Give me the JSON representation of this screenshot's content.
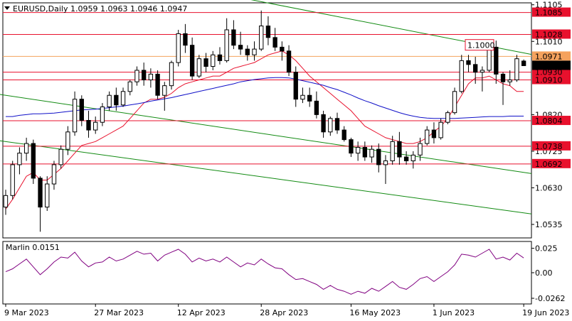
{
  "chart_data": {
    "type": "candlestick",
    "symbol_header": "EURUSD,Daily  1.0959 1.0963 1.0946 1.0947",
    "price_axis": {
      "ylim": [
        1.05,
        1.111
      ],
      "tick_labels": [
        {
          "value": 1.1105,
          "text": "1.1105"
        },
        {
          "value": 1.101,
          "text": "1.1010"
        },
        {
          "value": 1.082,
          "text": "1.0820"
        },
        {
          "value": 1.0725,
          "text": "1.0725"
        },
        {
          "value": 1.063,
          "text": "1.0630"
        },
        {
          "value": 1.0535,
          "text": "1.0535"
        }
      ]
    },
    "horizontal_levels": [
      {
        "value": 1.1085,
        "text": "1.1085",
        "color": "#e8112d"
      },
      {
        "value": 1.1028,
        "text": "1.1028",
        "color": "#e8112d"
      },
      {
        "value": 1.0971,
        "text": "1.0971",
        "color": "#f5a25d"
      },
      {
        "value": 1.093,
        "text": "1.0930",
        "color": "#e8112d"
      },
      {
        "value": 1.091,
        "text": "1.0910",
        "color": "#e8112d"
      },
      {
        "value": 1.0804,
        "text": "1.0804",
        "color": "#e8112d"
      },
      {
        "value": 1.0738,
        "text": "1.0738",
        "color": "#e8112d"
      },
      {
        "value": 1.0692,
        "text": "1.0692",
        "color": "#e8112d"
      }
    ],
    "current_price": {
      "value": 1.0947,
      "text": "1.0947"
    },
    "annotation": {
      "text": "1.1000",
      "value": 1.1
    },
    "date_labels": [
      "9 Mar 2023",
      "27 Mar 2023",
      "12 Apr 2023",
      "28 Apr 2023",
      "16 May 2023",
      "1 Jun 2023",
      "19 Jun 2023"
    ],
    "date_label_bar_index": [
      0,
      13,
      25,
      37,
      50,
      62,
      75
    ],
    "candles": [
      [
        1.058,
        1.0625,
        1.056,
        1.061
      ],
      [
        1.061,
        1.07,
        1.06,
        1.069
      ],
      [
        1.069,
        1.0735,
        1.0665,
        1.072
      ],
      [
        1.072,
        1.076,
        1.07,
        1.0745
      ],
      [
        1.0745,
        1.0755,
        1.064,
        1.0655
      ],
      [
        1.0655,
        1.066,
        1.0516,
        1.058
      ],
      [
        1.058,
        1.066,
        1.057,
        1.064
      ],
      [
        1.064,
        1.07,
        1.0625,
        1.069
      ],
      [
        1.069,
        1.074,
        1.068,
        1.073
      ],
      [
        1.073,
        1.079,
        1.0715,
        1.0775
      ],
      [
        1.0775,
        1.088,
        1.0765,
        1.086
      ],
      [
        1.086,
        1.087,
        1.079,
        1.0805
      ],
      [
        1.0805,
        1.083,
        1.076,
        1.078
      ],
      [
        1.078,
        1.0815,
        1.077,
        1.08
      ],
      [
        1.08,
        1.085,
        1.079,
        1.084
      ],
      [
        1.084,
        1.088,
        1.083,
        1.087
      ],
      [
        1.087,
        1.089,
        1.083,
        1.0845
      ],
      [
        1.0845,
        1.089,
        1.084,
        1.088
      ],
      [
        1.088,
        1.091,
        1.087,
        1.0905
      ],
      [
        1.0905,
        1.0945,
        1.0895,
        1.0935
      ],
      [
        1.0935,
        1.0955,
        1.0895,
        1.091
      ],
      [
        1.091,
        1.094,
        1.089,
        1.0925
      ],
      [
        1.0925,
        1.0935,
        1.086,
        1.087
      ],
      [
        1.087,
        1.0905,
        1.083,
        1.0895
      ],
      [
        1.0895,
        1.096,
        1.0885,
        1.0955
      ],
      [
        1.0955,
        1.104,
        1.0945,
        1.103
      ],
      [
        1.103,
        1.1055,
        1.098,
        1.1
      ],
      [
        1.1,
        1.102,
        1.091,
        1.092
      ],
      [
        1.092,
        1.0975,
        1.0915,
        1.0965
      ],
      [
        1.0965,
        1.098,
        1.093,
        1.0945
      ],
      [
        1.0945,
        1.0985,
        1.0935,
        1.0975
      ],
      [
        1.0975,
        1.0995,
        1.095,
        1.096
      ],
      [
        1.096,
        1.107,
        1.0955,
        1.104
      ],
      [
        1.104,
        1.1065,
        1.099,
        1.1
      ],
      [
        1.1,
        1.1035,
        1.0975,
        1.099
      ],
      [
        1.099,
        1.1,
        1.096,
        1.0975
      ],
      [
        1.0975,
        1.101,
        1.096,
        1.099
      ],
      [
        1.099,
        1.109,
        1.0985,
        1.105
      ],
      [
        1.105,
        1.1075,
        1.1,
        1.102
      ],
      [
        1.102,
        1.1045,
        1.0985,
        1.0995
      ],
      [
        1.0995,
        1.101,
        1.096,
        1.0985
      ],
      [
        1.0985,
        1.1,
        1.092,
        1.093
      ],
      [
        1.093,
        1.0945,
        1.084,
        1.086
      ],
      [
        1.086,
        1.089,
        1.085,
        1.087
      ],
      [
        1.087,
        1.089,
        1.084,
        1.0855
      ],
      [
        1.0855,
        1.088,
        1.081,
        1.082
      ],
      [
        1.082,
        1.083,
        1.076,
        1.0775
      ],
      [
        1.0775,
        1.0815,
        1.0765,
        1.081
      ],
      [
        1.081,
        1.0825,
        1.077,
        1.078
      ],
      [
        1.078,
        1.079,
        1.075,
        1.0755
      ],
      [
        1.0755,
        1.076,
        1.071,
        1.072
      ],
      [
        1.072,
        1.075,
        1.07,
        1.0735
      ],
      [
        1.0735,
        1.075,
        1.07,
        1.071
      ],
      [
        1.071,
        1.074,
        1.0695,
        1.073
      ],
      [
        1.073,
        1.0745,
        1.067,
        1.069
      ],
      [
        1.069,
        1.0715,
        1.064,
        1.07
      ],
      [
        1.07,
        1.0765,
        1.069,
        1.075
      ],
      [
        1.075,
        1.0775,
        1.069,
        1.071
      ],
      [
        1.071,
        1.0725,
        1.069,
        1.07
      ],
      [
        1.07,
        1.0725,
        1.068,
        1.0715
      ],
      [
        1.0715,
        1.076,
        1.07,
        1.0745
      ],
      [
        1.0745,
        1.079,
        1.074,
        1.078
      ],
      [
        1.078,
        1.08,
        1.0745,
        1.076
      ],
      [
        1.076,
        1.081,
        1.0755,
        1.08
      ],
      [
        1.08,
        1.083,
        1.0795,
        1.0825
      ],
      [
        1.0825,
        1.089,
        1.082,
        1.088
      ],
      [
        1.088,
        1.0975,
        1.0875,
        1.096
      ],
      [
        1.096,
        1.0975,
        1.093,
        1.095
      ],
      [
        1.095,
        1.097,
        1.09,
        1.093
      ],
      [
        1.093,
        1.0945,
        1.088,
        1.0935
      ],
      [
        1.0935,
        1.101,
        1.093,
        1.0995
      ],
      [
        1.0995,
        1.1012,
        1.09,
        1.0925
      ],
      [
        1.0925,
        1.093,
        1.0845,
        1.0905
      ],
      [
        1.0905,
        1.0935,
        1.0895,
        1.091
      ],
      [
        1.091,
        1.0975,
        1.0905,
        1.0965
      ],
      [
        1.0959,
        1.0963,
        1.0946,
        1.0947
      ]
    ],
    "series": [
      {
        "name": "",
        "color": "#e8112d",
        "type": "line",
        "values": [
          1.0575,
          1.06,
          1.063,
          1.066,
          1.067,
          1.065,
          1.065,
          1.0665,
          1.068,
          1.07,
          1.072,
          1.074,
          1.0745,
          1.075,
          1.076,
          1.077,
          1.078,
          1.079,
          1.081,
          1.083,
          1.085,
          1.086,
          1.086,
          1.0865,
          1.0875,
          1.089,
          1.09,
          1.0905,
          1.091,
          1.0915,
          1.092,
          1.092,
          1.093,
          1.094,
          1.0945,
          1.095,
          1.0955,
          1.0965,
          1.0975,
          1.098,
          1.0985,
          1.0975,
          1.096,
          1.094,
          1.092,
          1.0905,
          1.089,
          1.0875,
          1.086,
          1.0845,
          1.083,
          1.081,
          1.079,
          1.078,
          1.077,
          1.076,
          1.0755,
          1.075,
          1.0745,
          1.0745,
          1.075,
          1.076,
          1.0775,
          1.079,
          1.081,
          1.084,
          1.087,
          1.09,
          1.0915,
          1.0915,
          1.092,
          1.091,
          1.09,
          1.0895,
          1.088,
          1.088
        ]
      },
      {
        "name": "",
        "color": "#1010c8",
        "type": "line",
        "values": [
          1.0815,
          1.0815,
          1.0818,
          1.082,
          1.0822,
          1.0822,
          1.0823,
          1.0824,
          1.0826,
          1.0828,
          1.083,
          1.0832,
          1.0833,
          1.0834,
          1.0836,
          1.0838,
          1.084,
          1.0842,
          1.0845,
          1.0848,
          1.0851,
          1.0855,
          1.0858,
          1.0861,
          1.0864,
          1.0868,
          1.0872,
          1.0876,
          1.088,
          1.0884,
          1.0888,
          1.0892,
          1.0896,
          1.09,
          1.0905,
          1.0908,
          1.0911,
          1.0913,
          1.0915,
          1.0916,
          1.0916,
          1.0915,
          1.0912,
          1.0908,
          1.0904,
          1.09,
          1.0896,
          1.089,
          1.0885,
          1.0878,
          1.0871,
          1.0863,
          1.0856,
          1.085,
          1.0843,
          1.0837,
          1.0831,
          1.0825,
          1.082,
          1.0816,
          1.0813,
          1.0811,
          1.081,
          1.081,
          1.081,
          1.081,
          1.0811,
          1.0812,
          1.0813,
          1.0814,
          1.0815,
          1.0815,
          1.0815,
          1.0816,
          1.0816,
          1.0816
        ]
      }
    ],
    "channels": [
      {
        "color": "#118a11",
        "p1": [
          0,
          1.087
        ],
        "p2": [
          75,
          1.067
        ]
      },
      {
        "color": "#118a11",
        "p1": [
          0,
          1.075
        ],
        "p2": [
          75,
          1.0565
        ]
      },
      {
        "color": "#118a11",
        "p1": [
          35,
          1.112
        ],
        "p2": [
          75,
          1.098
        ]
      }
    ],
    "oscillator": {
      "name": "Marlin",
      "header": "Marlin 0.0151",
      "ylim": [
        -0.032,
        0.032
      ],
      "tick_labels": [
        {
          "value": 0.025,
          "text": "0.025"
        },
        {
          "value": 0.0,
          "text": "0.00"
        },
        {
          "value": -0.0262,
          "text": "-0.0262"
        }
      ],
      "color": "#800080",
      "values": [
        0.001,
        0.004,
        0.009,
        0.014,
        0.006,
        -0.002,
        0.004,
        0.011,
        0.016,
        0.015,
        0.021,
        0.012,
        0.006,
        0.01,
        0.011,
        0.016,
        0.012,
        0.014,
        0.018,
        0.022,
        0.019,
        0.02,
        0.012,
        0.018,
        0.021,
        0.024,
        0.019,
        0.011,
        0.015,
        0.012,
        0.014,
        0.011,
        0.016,
        0.011,
        0.006,
        0.01,
        0.008,
        0.014,
        0.009,
        0.005,
        0.004,
        -0.002,
        -0.007,
        -0.006,
        -0.009,
        -0.012,
        -0.017,
        -0.013,
        -0.017,
        -0.019,
        -0.022,
        -0.019,
        -0.021,
        -0.016,
        -0.019,
        -0.014,
        -0.009,
        -0.015,
        -0.017,
        -0.012,
        -0.006,
        -0.004,
        -0.009,
        -0.004,
        0.001,
        0.008,
        0.019,
        0.018,
        0.016,
        0.02,
        0.024,
        0.014,
        0.016,
        0.013,
        0.02,
        0.0151
      ]
    }
  }
}
